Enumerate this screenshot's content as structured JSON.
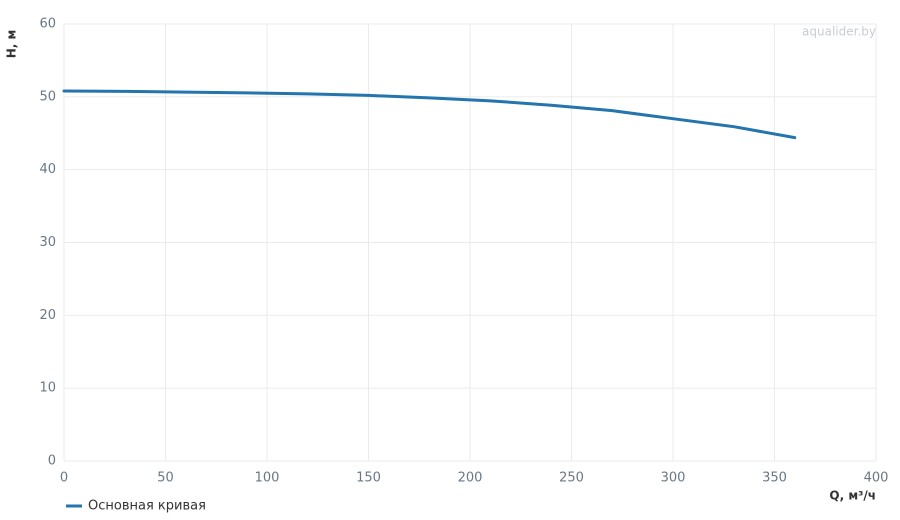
{
  "chart_data": {
    "type": "line",
    "watermark": "aqualider.by",
    "x_label": "Q, м³/ч",
    "y_label": "H, м",
    "x": [
      0,
      30,
      60,
      90,
      120,
      150,
      180,
      210,
      240,
      270,
      300,
      330,
      360
    ],
    "series": [
      {
        "name": "Основная кривая",
        "color": "#2474ae",
        "values": [
          50.8,
          50.75,
          50.65,
          50.55,
          50.4,
          50.2,
          49.85,
          49.45,
          48.85,
          48.1,
          47.0,
          45.9,
          44.4
        ]
      }
    ],
    "xlim": [
      0,
      400
    ],
    "xticks": [
      0,
      50,
      100,
      150,
      200,
      250,
      300,
      350,
      400
    ],
    "ylim": [
      0,
      60
    ],
    "yticks": [
      0,
      10,
      20,
      30,
      40,
      50,
      60
    ],
    "grid": true,
    "legend": "bottom-left"
  }
}
